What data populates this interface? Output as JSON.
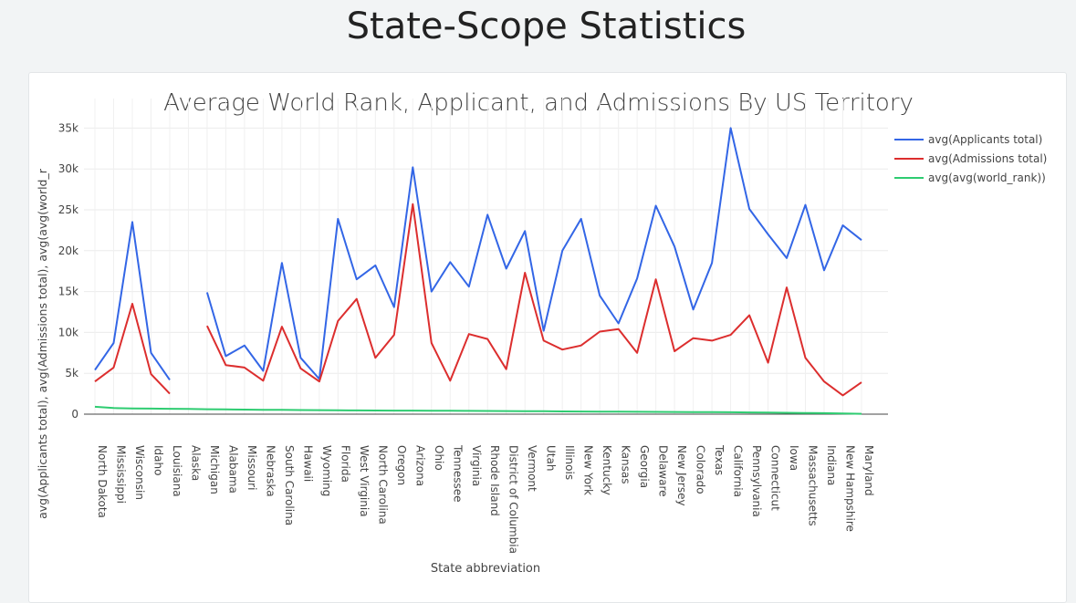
{
  "page": {
    "title": "State-Scope Statistics"
  },
  "chart_data": {
    "type": "line",
    "title": "Average World Rank, Applicant, and Admissions By US Territory",
    "xlabel": "State abbreviation",
    "ylabel": "avg(Applicants total), avg(Admissions total), avg(avg(world_r",
    "ylim": [
      0,
      37500
    ],
    "yticks": [
      0,
      5000,
      10000,
      15000,
      20000,
      25000,
      30000,
      35000
    ],
    "ytick_labels": [
      "0",
      "5k",
      "10k",
      "15k",
      "20k",
      "25k",
      "30k",
      "35k"
    ],
    "grid": true,
    "legend": "top-right",
    "categories": [
      "North Dakota",
      "Mississippi",
      "Wisconsin",
      "Idaho",
      "Louisiana",
      "Alaska",
      "Michigan",
      "Alabama",
      "Missouri",
      "Nebraska",
      "South Carolina",
      "Hawaii",
      "Wyoming",
      "Florida",
      "West Virginia",
      "North Carolina",
      "Oregon",
      "Arizona",
      "Ohio",
      "Tennessee",
      "Virginia",
      "Rhode Island",
      "District of Columbia",
      "Vermont",
      "Utah",
      "Illinois",
      "New York",
      "Kentucky",
      "Kansas",
      "Georgia",
      "Delaware",
      "New Jersey",
      "Colorado",
      "Texas",
      "California",
      "Pennsylvania",
      "Connecticut",
      "Iowa",
      "Massachusetts",
      "Indiana",
      "New Hampshire",
      "Maryland"
    ],
    "series": [
      {
        "name": "avg(Applicants total)",
        "color": "#3366e6",
        "values": [
          5400,
          8700,
          23500,
          7500,
          4200,
          null,
          14900,
          7100,
          8400,
          5300,
          18500,
          6900,
          4300,
          23900,
          16500,
          18200,
          13100,
          30200,
          15000,
          18600,
          15600,
          24400,
          17800,
          22400,
          10200,
          20000,
          23900,
          14500,
          11100,
          16600,
          25500,
          20500,
          12800,
          18500,
          35000,
          25100,
          22000,
          19100,
          25600,
          17600,
          23100,
          21300
        ]
      },
      {
        "name": "avg(Admissions total)",
        "color": "#dc2e2e",
        "values": [
          4000,
          5700,
          13500,
          4900,
          2500,
          null,
          10800,
          6000,
          5700,
          4100,
          10700,
          5600,
          4000,
          11400,
          14100,
          6900,
          9700,
          25700,
          8700,
          4100,
          9800,
          9200,
          5500,
          17300,
          9000,
          7900,
          8400,
          10100,
          10400,
          7500,
          16500,
          7700,
          9300,
          9000,
          9700,
          12100,
          6300,
          15500,
          6900,
          4000,
          2300,
          3900
        ]
      },
      {
        "name": "avg(avg(world_rank))",
        "color": "#2ecc71",
        "values": [
          900,
          750,
          700,
          680,
          660,
          640,
          600,
          580,
          560,
          540,
          520,
          500,
          490,
          470,
          460,
          450,
          440,
          430,
          420,
          410,
          400,
          390,
          380,
          370,
          360,
          340,
          320,
          310,
          300,
          290,
          280,
          270,
          260,
          250,
          230,
          210,
          190,
          170,
          150,
          120,
          90,
          50
        ]
      }
    ]
  }
}
